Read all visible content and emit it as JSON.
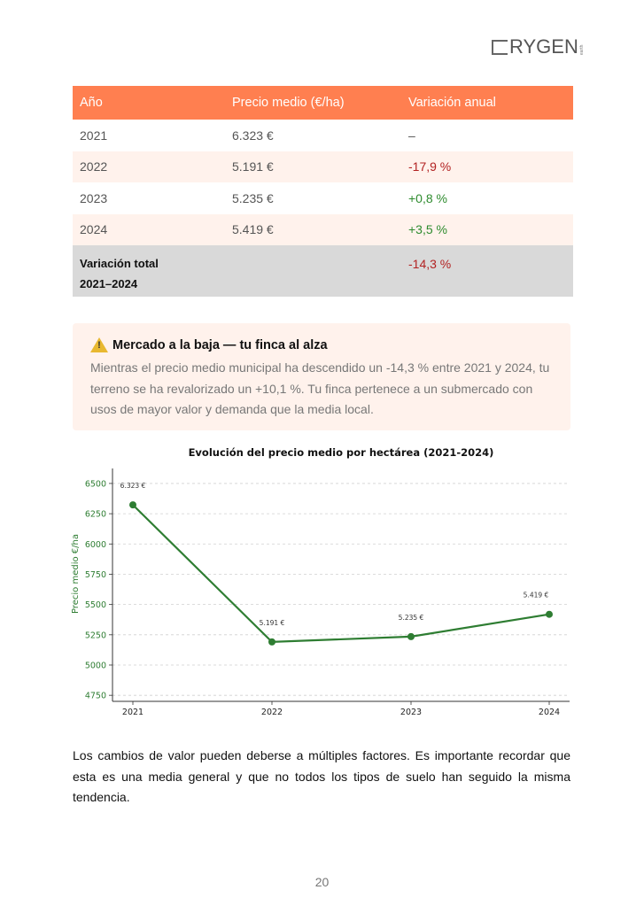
{
  "logo": {
    "text": "RYGEN",
    "sub": "earth"
  },
  "table": {
    "headers": [
      "Año",
      "Precio medio (€/ha)",
      "Variación anual"
    ],
    "rows": [
      {
        "year": "2021",
        "price": "6.323 €",
        "change": "–"
      },
      {
        "year": "2022",
        "price": "5.191 €",
        "change": "-17,9 %"
      },
      {
        "year": "2023",
        "price": "5.235 €",
        "change": "+0,8 %"
      },
      {
        "year": "2024",
        "price": "5.419 €",
        "change": "+3,5 %"
      }
    ],
    "total": {
      "label_line1": "Variación total",
      "label_line2": "2021–2024",
      "change": "-14,3 %"
    }
  },
  "callout": {
    "icon": "warning-icon",
    "icon_glyph": "!",
    "title": "Mercado a la baja — tu finca al alza",
    "body": "Mientras el precio medio municipal ha descendido un -14,3 % entre 2021 y 2024, tu terreno se ha revalorizado un +10,1 %. Tu finca pertenece a un submercado con usos de mayor valor y demanda que la media local."
  },
  "chart_data": {
    "type": "line",
    "title": "Evolución del precio medio por hectárea (2021-2024)",
    "xlabel": "",
    "ylabel": "Precio medio €/ha",
    "x": [
      "2021",
      "2022",
      "2023",
      "2024"
    ],
    "series": [
      {
        "values": [
          6323,
          5191,
          5235,
          5419
        ],
        "labels": [
          "6.323 €",
          "5.191 €",
          "5.235 €",
          "5.419 €"
        ]
      }
    ],
    "ylim": [
      4700,
      6580
    ],
    "yticks": [
      4750,
      5000,
      5250,
      5500,
      5750,
      6000,
      6250,
      6500
    ],
    "grid": "horizontal dashed",
    "colors": {
      "line": "#2e7d32",
      "ytick": "#2e7d32"
    }
  },
  "paragraph": "Los cambios de valor pueden deberse a múltiples factores. Es importante recordar que esta es una media general y que no todos los tipos de suelo han seguido la misma tendencia.",
  "page_number": "20"
}
